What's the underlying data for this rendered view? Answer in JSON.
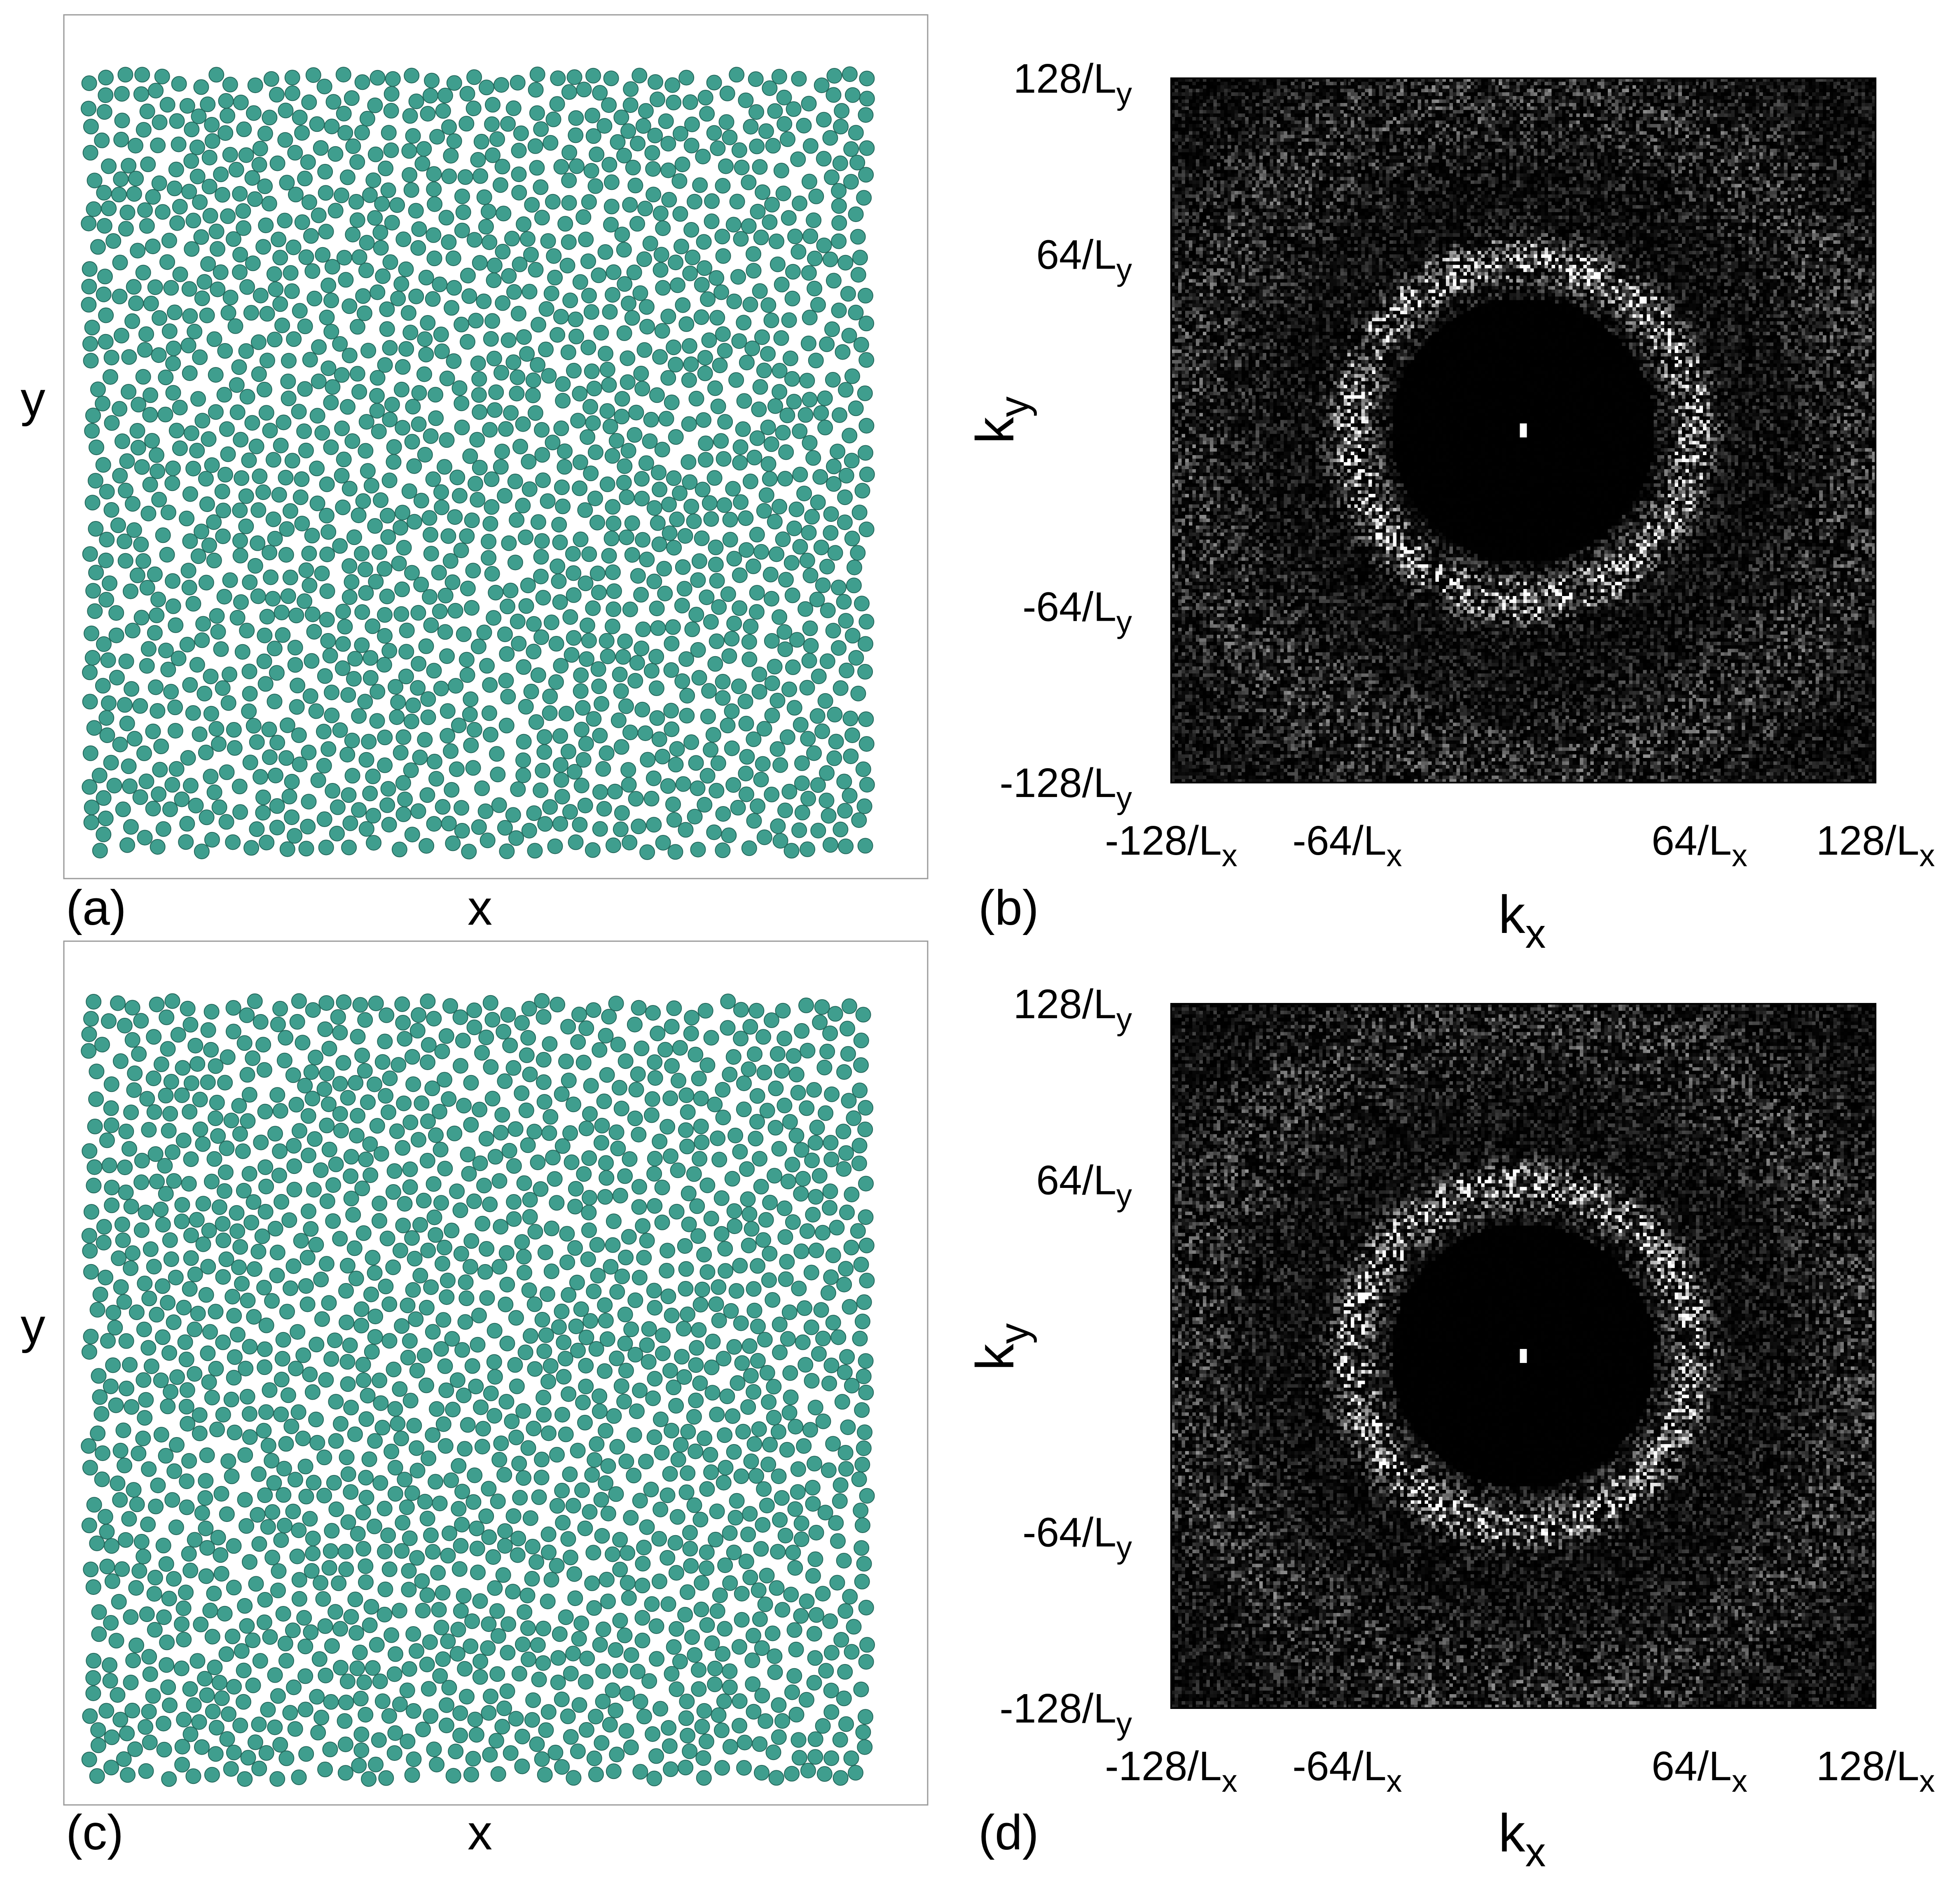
{
  "panels": [
    {
      "id": "a",
      "type": "scatter",
      "label": "(a)",
      "xlabel": "x",
      "ylabel": "y",
      "particle_color": "#3f9e8e",
      "particle_edge": "#24675b",
      "seed": 11
    },
    {
      "id": "b",
      "type": "heatmap",
      "label": "(b)",
      "xlabel_main": "k",
      "xlabel_sub": "x",
      "ylabel_main": "k",
      "ylabel_sub": "y",
      "xticks": [
        {
          "value": -128,
          "main": "-128/L",
          "sub": "x"
        },
        {
          "value": -64,
          "main": "-64/L",
          "sub": "x"
        },
        {
          "value": 64,
          "main": "64/L",
          "sub": "x"
        },
        {
          "value": 128,
          "main": "128/L",
          "sub": "x"
        }
      ],
      "yticks": [
        {
          "value": 128,
          "main": "128/L",
          "sub": "y"
        },
        {
          "value": 64,
          "main": "64/L",
          "sub": "y"
        },
        {
          "value": -64,
          "main": "-64/L",
          "sub": "y"
        },
        {
          "value": -128,
          "main": "-128/L",
          "sub": "y"
        }
      ],
      "xlim": [
        -128,
        128
      ],
      "ylim": [
        -128,
        128
      ],
      "ring_radius": 62,
      "seed": 23
    },
    {
      "id": "c",
      "type": "scatter",
      "label": "(c)",
      "xlabel": "x",
      "ylabel": "y",
      "particle_color": "#3f9e8e",
      "particle_edge": "#24675b",
      "seed": 37
    },
    {
      "id": "d",
      "type": "heatmap",
      "label": "(d)",
      "xlabel_main": "k",
      "xlabel_sub": "x",
      "ylabel_main": "k",
      "ylabel_sub": "y",
      "xticks": [
        {
          "value": -128,
          "main": "-128/L",
          "sub": "x"
        },
        {
          "value": -64,
          "main": "-64/L",
          "sub": "x"
        },
        {
          "value": 64,
          "main": "64/L",
          "sub": "x"
        },
        {
          "value": 128,
          "main": "128/L",
          "sub": "x"
        }
      ],
      "yticks": [
        {
          "value": 128,
          "main": "128/L",
          "sub": "y"
        },
        {
          "value": 64,
          "main": "64/L",
          "sub": "y"
        },
        {
          "value": -64,
          "main": "-64/L",
          "sub": "y"
        },
        {
          "value": -128,
          "main": "-128/L",
          "sub": "y"
        }
      ],
      "xlim": [
        -128,
        128
      ],
      "ylim": [
        -128,
        128
      ],
      "ring_radius": 62,
      "seed": 53
    }
  ]
}
